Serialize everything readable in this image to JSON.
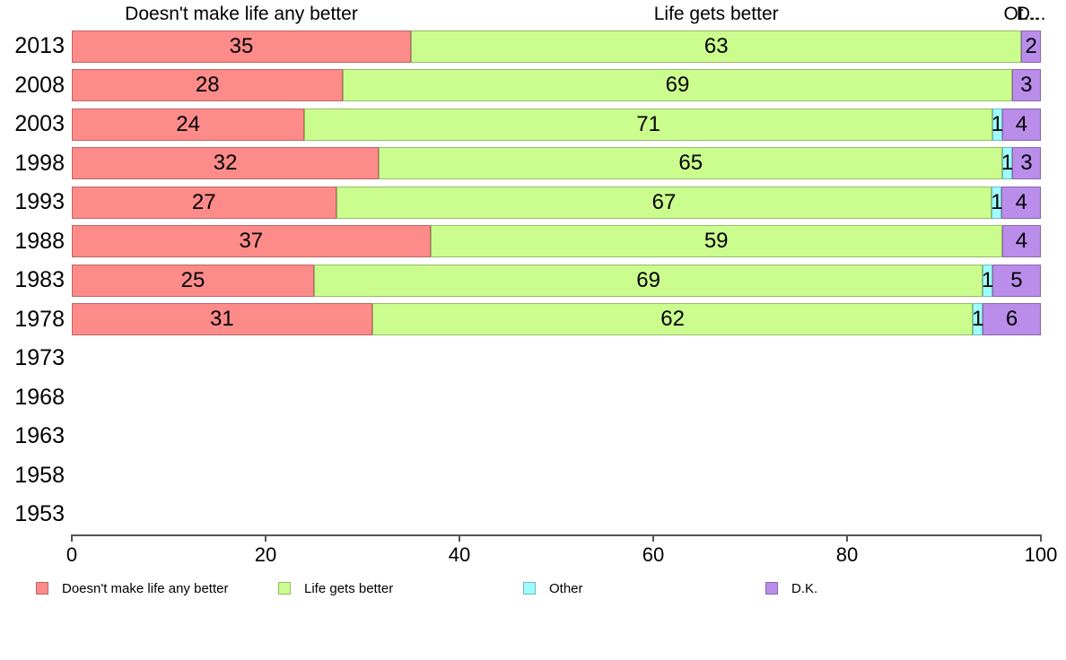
{
  "chart_data": {
    "type": "bar",
    "orientation": "horizontal-stacked",
    "title": "",
    "xlabel": "",
    "ylabel": "",
    "xlim": [
      0,
      100
    ],
    "xticks": [
      0,
      20,
      40,
      60,
      80,
      100
    ],
    "grid": false,
    "legend_position": "bottom",
    "categories": [
      "2013",
      "2008",
      "2003",
      "1998",
      "1993",
      "1988",
      "1983",
      "1978",
      "1973",
      "1968",
      "1963",
      "1958",
      "1953"
    ],
    "series": [
      {
        "name": "Doesn't make life any better",
        "color": "#FC8B8A",
        "border_color": "#BC6665",
        "values": [
          35,
          28,
          24,
          32,
          27,
          37,
          25,
          31,
          null,
          null,
          null,
          null,
          null
        ]
      },
      {
        "name": "Life gets better",
        "color": "#CBFC8E",
        "border_color": "#95BC67",
        "values": [
          63,
          69,
          71,
          65,
          67,
          59,
          69,
          62,
          null,
          null,
          null,
          null,
          null
        ]
      },
      {
        "name": "Other",
        "color": "#9FFCFC",
        "border_color": "#6FBCBC",
        "values": [
          0,
          0,
          1,
          1,
          1,
          0,
          1,
          1,
          null,
          null,
          null,
          null,
          null
        ]
      },
      {
        "name": "D.K.",
        "color": "#B98DE9",
        "border_color": "#8A66B0",
        "values": [
          2,
          3,
          4,
          3,
          4,
          4,
          5,
          6,
          null,
          null,
          null,
          null,
          null
        ]
      }
    ],
    "column_headers": [
      "Doesn't make life any better",
      "Life gets better",
      "Ot...",
      "D..."
    ]
  }
}
